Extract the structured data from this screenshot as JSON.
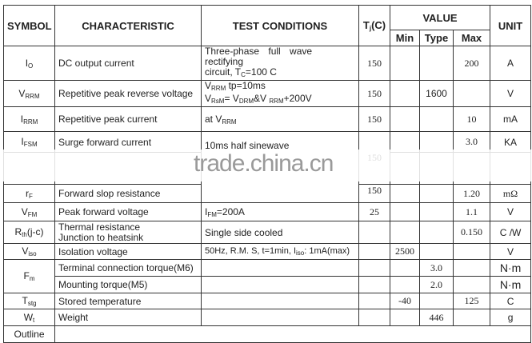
{
  "header": {
    "symbol": "SYMBOL",
    "characteristic": "CHARACTERISTIC",
    "test": "TEST CONDITIONS",
    "tj": "T",
    "tj_sub": "j",
    "tj_unit": "(C)",
    "value": "VALUE",
    "min": "Min",
    "type": "Type",
    "max": "Max",
    "unit": "UNIT"
  },
  "rows": {
    "io": {
      "sym": "I",
      "sub": "O",
      "char": "DC output current",
      "test1": "Three-phase full wave rectifying",
      "test2": "circuit, T",
      "test2_sub": "C",
      "test2_end": "=100 C",
      "tj": "150",
      "max": "200",
      "unit": "A"
    },
    "vrrm": {
      "sym": "V",
      "sub": "RRM",
      "char": "Repetitive peak reverse voltage",
      "test1": "V",
      "test1_sub": "RRM",
      "test1_end": " tp=10ms",
      "test2": "V",
      "test2_sub": "RsM",
      "test2_mid": "= V",
      "test2_sub2": "DRM",
      "test2_mid2": "&V ",
      "test2_sub3": "RRM",
      "test2_end": "+200V",
      "tj": "150",
      "type": "1600",
      "unit": "V"
    },
    "irrm": {
      "sym": "I",
      "sub": "RRM",
      "char": "Repetitive peak current",
      "test": "at V",
      "test_sub": "RRM",
      "tj": "150",
      "max": "10",
      "unit": "mA"
    },
    "ifsm": {
      "sym": "I",
      "sub": "FSM",
      "char": "Surge forward current",
      "test": "10ms half sinewave",
      "tj": "150",
      "max": "3.0",
      "unit": "KA"
    },
    "rf": {
      "sym": "r",
      "sub": "F",
      "char": "Forward slop resistance",
      "tj": "150",
      "max": "1.20",
      "unit": "mΩ"
    },
    "vfm": {
      "sym": "V",
      "sub": "FM",
      "char": "Peak forward voltage",
      "test": "I",
      "test_sub": "FM",
      "test_end": "=200A",
      "tj": "25",
      "max": "1.1",
      "unit": "V"
    },
    "rth": {
      "sym": "R",
      "sub": "th",
      "sym_end": "(j-c)",
      "char1": "Thermal resistance",
      "char2": "Junction to heatsink",
      "test": "Single side cooled",
      "max": "0.150",
      "unit": "C /W"
    },
    "viso": {
      "sym": "V",
      "sub": "iso",
      "char": "Isolation voltage",
      "test": "50Hz, R.M. S, t=1min, I",
      "test_sub": "iso",
      "test_end": ": 1mA(max)",
      "min": "2500",
      "unit": "V"
    },
    "fm": {
      "sym": "F",
      "sub": "m",
      "char1": "Terminal connection torque(M6)",
      "type1": "3.0",
      "unit1": "N·m",
      "char2": "Mounting torque(M5)",
      "type2": "2.0",
      "unit2": "N·m"
    },
    "tstg": {
      "sym": "T",
      "sub": "stg",
      "char": "Stored temperature",
      "min": "-40",
      "max": "125",
      "unit": "C"
    },
    "wt": {
      "sym": "W",
      "sub": "t",
      "char": "Weight",
      "type": "446",
      "unit": "g"
    },
    "outline": {
      "sym": "Outline"
    }
  },
  "watermark": "trade.china.cn"
}
